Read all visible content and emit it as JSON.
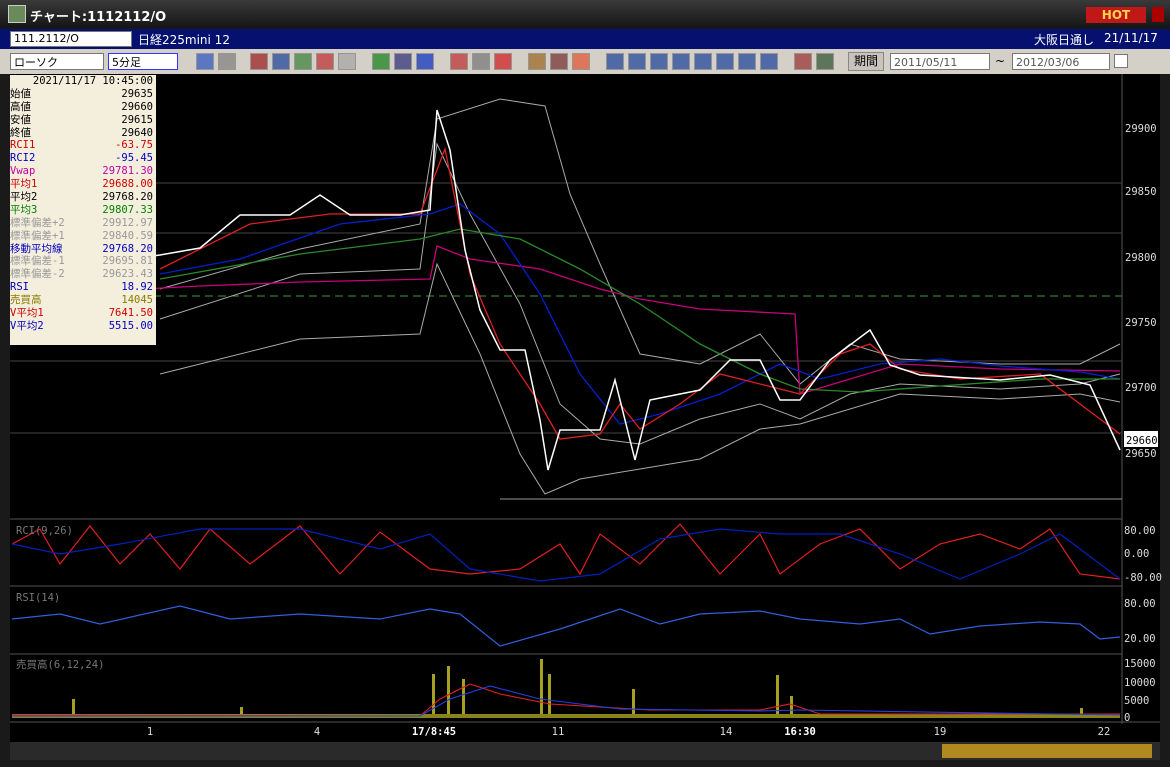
{
  "window": {
    "title": "チャート:1112112/O",
    "hot": "HOT"
  },
  "header": {
    "code": "111.2112/O",
    "name": "日経225mini 12",
    "market": "大阪日通し",
    "date": "21/11/17"
  },
  "toolbar": {
    "chart_type": "ローソク",
    "interval": "5分足",
    "period": "期間",
    "from": "2011/05/11",
    "tilde": "~",
    "to": "2012/03/06"
  },
  "info": {
    "datetime": "2021/11/17  10:45:00",
    "rows": [
      {
        "label": "始値",
        "value": "29635",
        "color": "#000"
      },
      {
        "label": "高値",
        "value": "29660",
        "color": "#000"
      },
      {
        "label": "安値",
        "value": "29615",
        "color": "#000"
      },
      {
        "label": "終値",
        "value": "29640",
        "color": "#000"
      },
      {
        "label": "RCI1",
        "value": "-63.75",
        "color": "#d00000"
      },
      {
        "label": "RCI2",
        "value": "-95.45",
        "color": "#0000c0"
      },
      {
        "label": "Vwap",
        "value": "29781.30",
        "color": "#c000a0"
      },
      {
        "label": "平均1",
        "value": "29688.00",
        "color": "#d00000"
      },
      {
        "label": "平均2",
        "value": "29768.20",
        "color": "#000"
      },
      {
        "label": "平均3",
        "value": "29807.33",
        "color": "#008000"
      },
      {
        "label": "標準偏差+2",
        "value": "29912.97",
        "color": "#999"
      },
      {
        "label": "標準偏差+1",
        "value": "29840.59",
        "color": "#999"
      },
      {
        "label": "移動平均線",
        "value": "29768.20",
        "color": "#0000c0"
      },
      {
        "label": "標準偏差-1",
        "value": "29695.81",
        "color": "#999"
      },
      {
        "label": "標準偏差-2",
        "value": "29623.43",
        "color": "#999"
      },
      {
        "label": "RSI",
        "value": "18.92",
        "color": "#0000c0"
      },
      {
        "label": "売買高",
        "value": "14045",
        "color": "#8a7a00"
      },
      {
        "label": "V平均1",
        "value": "7641.50",
        "color": "#d00000"
      },
      {
        "label": "V平均2",
        "value": "5515.00",
        "color": "#0000c0"
      }
    ]
  },
  "price_axis": {
    "ticks": [
      "29900",
      "29850",
      "29800",
      "29750",
      "29700",
      "29650"
    ],
    "current": "29660"
  },
  "rci": {
    "label": "RCI(9,26)",
    "ticks": [
      "80.00",
      "0.00",
      "-80.00"
    ]
  },
  "rsi": {
    "label": "RSI(14)",
    "ticks": [
      "80.00",
      "20.00"
    ]
  },
  "volume": {
    "label": "売買高(6,12,24)",
    "ticks": [
      "15000",
      "10000",
      "5000",
      "0"
    ]
  },
  "time_axis": [
    "1",
    "4",
    "17/8:45",
    "11",
    "14",
    "16:30",
    "19",
    "22"
  ]
}
